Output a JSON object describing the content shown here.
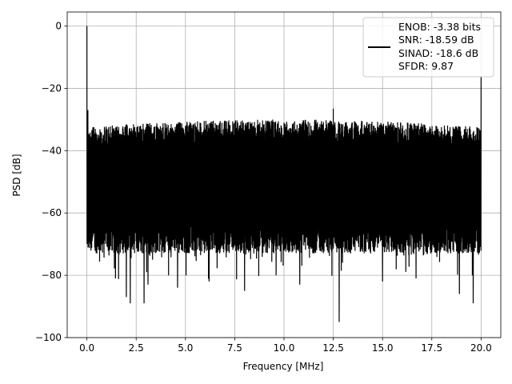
{
  "chart_data": {
    "type": "line",
    "title": "",
    "xlabel": "Frequency [MHz]",
    "ylabel": "PSD [dB]",
    "xlim": [
      -1,
      21
    ],
    "ylim": [
      -100,
      4.5
    ],
    "xticks": [
      0.0,
      2.5,
      5.0,
      7.5,
      10.0,
      12.5,
      15.0,
      17.5,
      20.0
    ],
    "xtick_labels": [
      "0.0",
      "2.5",
      "5.0",
      "7.5",
      "10.0",
      "12.5",
      "15.0",
      "17.5",
      "20.0"
    ],
    "yticks": [
      0,
      -20,
      -40,
      -60,
      -80,
      -100
    ],
    "ytick_labels": [
      "0",
      "−20",
      "−40",
      "−60",
      "−80",
      "−100"
    ],
    "grid": true,
    "legend_position": "top-right",
    "series_color": "#000000",
    "series": [
      {
        "name": "ENOB: -3.38 bits\nSNR: -18.59 dB\nSINAD: -18.6 dB\nSFDR: 9.87",
        "legend_lines": [
          "ENOB: -3.38 bits",
          "SNR: -18.59 dB",
          "SINAD: -18.6 dB",
          "SFDR: 9.87"
        ],
        "x_range": [
          0.0,
          20.0
        ],
        "noise_floor_upper_db": -30,
        "noise_floor_lower_db": -73,
        "peaks": [
          {
            "x": 0.0,
            "y": 0
          },
          {
            "x": 0.05,
            "y": -27
          },
          {
            "x": 20.0,
            "y": -16
          },
          {
            "x": 12.5,
            "y": -26.5
          }
        ],
        "notable_dips": [
          {
            "x": 1.45,
            "y": -81
          },
          {
            "x": 2.0,
            "y": -87
          },
          {
            "x": 2.2,
            "y": -89
          },
          {
            "x": 2.9,
            "y": -89
          },
          {
            "x": 3.1,
            "y": -83
          },
          {
            "x": 4.6,
            "y": -84
          },
          {
            "x": 6.2,
            "y": -82
          },
          {
            "x": 8.0,
            "y": -85
          },
          {
            "x": 9.6,
            "y": -80
          },
          {
            "x": 10.8,
            "y": -83
          },
          {
            "x": 12.8,
            "y": -95
          },
          {
            "x": 15.0,
            "y": -82
          },
          {
            "x": 16.7,
            "y": -81
          },
          {
            "x": 18.9,
            "y": -86
          },
          {
            "x": 19.6,
            "y": -89
          }
        ]
      }
    ]
  }
}
